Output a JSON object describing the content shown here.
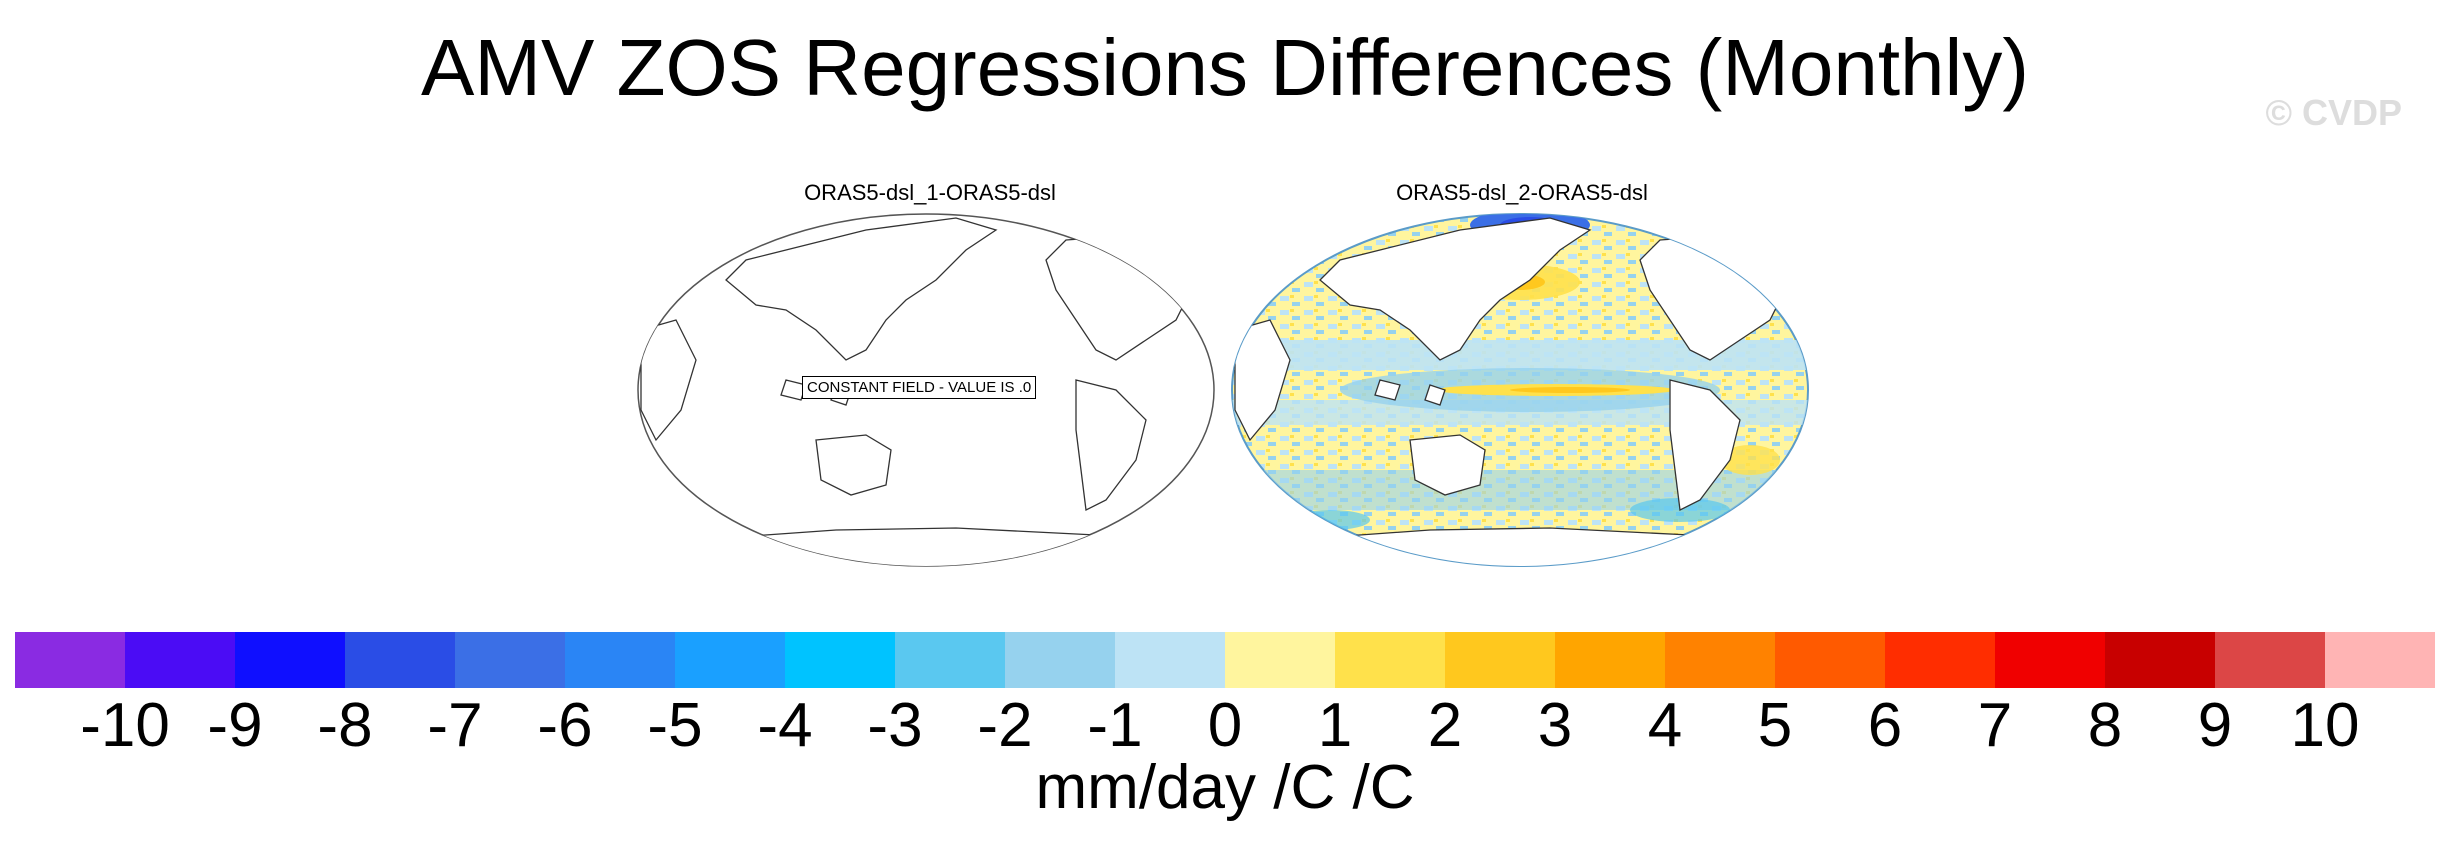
{
  "title": "AMV ZOS Regressions Differences (Monthly)",
  "watermark": "© CVDP",
  "panels": [
    {
      "title": "ORAS5-dsl_1-ORAS5-dsl",
      "note": "CONSTANT FIELD - VALUE IS .0"
    },
    {
      "title": "ORAS5-dsl_2-ORAS5-dsl"
    }
  ],
  "colorbar": {
    "ticks": [
      "-10",
      "-9",
      "-8",
      "-7",
      "-6",
      "-5",
      "-4",
      "-3",
      "-2",
      "-1",
      "0",
      "1",
      "2",
      "3",
      "4",
      "5",
      "6",
      "7",
      "8",
      "9",
      "10"
    ],
    "colors": [
      "#8a2be2",
      "#4b0cf5",
      "#0f0fff",
      "#2a4de6",
      "#3b6fe6",
      "#2a85f5",
      "#1aa0ff",
      "#00c3ff",
      "#5ac8f0",
      "#96d2ee",
      "#bde3f5",
      "#fff59e",
      "#ffe14b",
      "#ffc81e",
      "#ffa500",
      "#ff8200",
      "#ff5a00",
      "#ff2d00",
      "#f00000",
      "#c80000",
      "#dc4646",
      "#ffb4b4"
    ],
    "units": "mm/day /C /C"
  }
}
